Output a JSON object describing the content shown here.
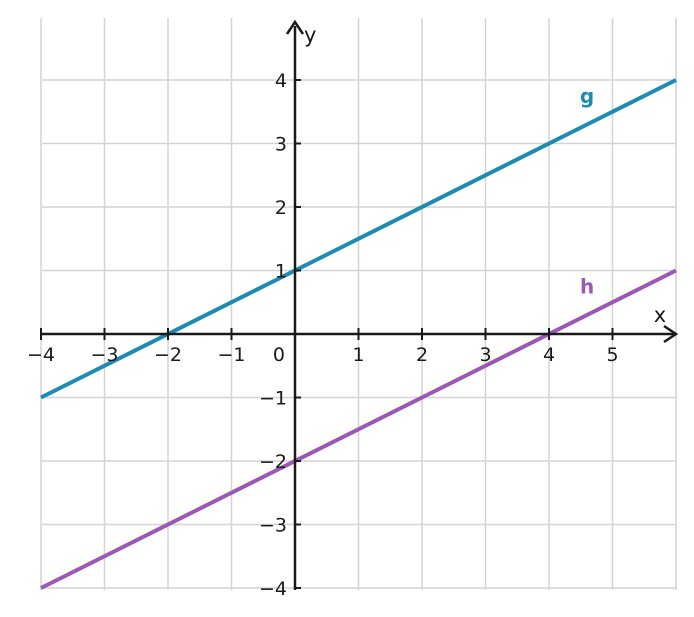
{
  "chart_data": {
    "type": "line",
    "xlabel": "x",
    "ylabel": "y",
    "xlim": [
      -4,
      6
    ],
    "ylim": [
      -4,
      4.9
    ],
    "grid": true,
    "x_ticks": [
      -4,
      -3,
      -2,
      -1,
      1,
      2,
      3,
      4,
      5
    ],
    "y_ticks": [
      -4,
      -3,
      -2,
      -1,
      1,
      2,
      3,
      4
    ],
    "x_tick_labels": [
      "−4",
      "−3",
      "−2",
      "−1",
      "1",
      "2",
      "3",
      "4",
      "5"
    ],
    "y_tick_labels": [
      "−4",
      "−3",
      "−2",
      "−1",
      "1",
      "2",
      "3",
      "4"
    ],
    "origin_label": "0",
    "series": [
      {
        "name": "g",
        "color": "#1f8ab5",
        "slope": 0.5,
        "intercept": 1,
        "x": [
          -4,
          6
        ],
        "y": [
          -1,
          4
        ],
        "label_position_data": [
          4.6,
          3.75
        ]
      },
      {
        "name": "h",
        "color": "#9b59b6",
        "slope": 0.5,
        "intercept": -2,
        "x": [
          -4,
          6
        ],
        "y": [
          -4,
          1
        ],
        "label_position_data": [
          4.6,
          0.75
        ]
      }
    ]
  }
}
